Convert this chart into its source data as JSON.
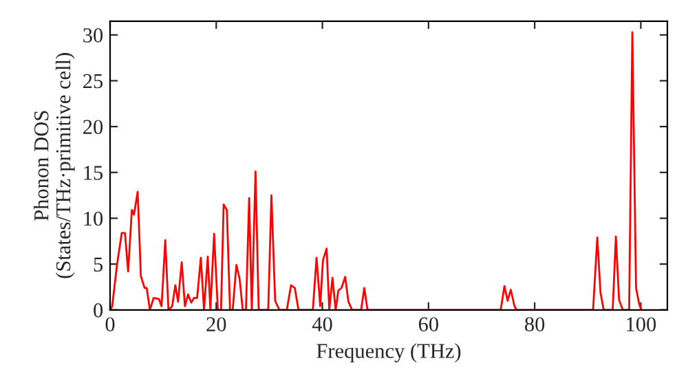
{
  "chart_data": {
    "type": "line",
    "xlabel": "Frequency (THz)",
    "ylabel": "Phonon DOS\n(States/THz·primitive cell)",
    "xlim": [
      0,
      105
    ],
    "ylim": [
      0,
      31.5
    ],
    "xticks": [
      0,
      20,
      40,
      60,
      80,
      100
    ],
    "yticks": [
      0,
      5,
      10,
      15,
      20,
      25,
      30
    ],
    "grid": false,
    "legend": false,
    "series": [
      {
        "color": "#ff0000",
        "x": [
          0,
          0.4,
          1.3,
          2.2,
          2.8,
          3.4,
          4.1,
          4.5,
          5.2,
          5.8,
          6.5,
          6.9,
          7.5,
          8.2,
          9.2,
          9.7,
          10.4,
          11.0,
          11.7,
          12.3,
          12.8,
          13.5,
          14.1,
          14.7,
          15.3,
          15.8,
          16.4,
          17.1,
          17.7,
          18.4,
          18.9,
          19.6,
          20.3,
          20.9,
          21.4,
          22.0,
          22.6,
          23.1,
          23.8,
          24.4,
          25.0,
          25.6,
          26.2,
          26.7,
          27.4,
          28.0,
          29.8,
          30.4,
          31.1,
          31.9,
          33.3,
          34.1,
          34.8,
          35.5,
          38.2,
          38.9,
          39.6,
          40.1,
          40.8,
          41.3,
          41.9,
          42.5,
          43.0,
          43.6,
          44.3,
          44.9,
          45.6,
          47.3,
          47.9,
          48.5,
          73.6,
          74.3,
          74.9,
          75.5,
          76.2,
          76.6,
          91.0,
          91.8,
          92.4,
          93.0,
          94.7,
          95.3,
          95.9,
          96.6,
          97.8,
          98.4,
          99.1,
          99.7,
          100.1
        ],
        "values": [
          0,
          0.4,
          4.9,
          8.4,
          8.4,
          4.2,
          10.9,
          10.4,
          12.9,
          3.7,
          2.4,
          2.4,
          0,
          1.3,
          1.2,
          0.4,
          7.6,
          0,
          0.4,
          2.7,
          0.9,
          5.2,
          0.4,
          1.7,
          0.8,
          1.3,
          1.3,
          5.7,
          0,
          5.8,
          0,
          8.3,
          0,
          0,
          11.5,
          10.9,
          0,
          0,
          4.9,
          3.4,
          0,
          0,
          12.2,
          0,
          15.1,
          0,
          0,
          12.5,
          1.0,
          0,
          0,
          2.7,
          2.4,
          0,
          0,
          5.7,
          0.4,
          5.4,
          6.7,
          0,
          3.5,
          0,
          2.1,
          2.4,
          3.6,
          0.9,
          0,
          0,
          2.4,
          0,
          0,
          2.6,
          1.0,
          2.2,
          0.4,
          0,
          0,
          7.9,
          1.9,
          0,
          0,
          8.0,
          1.1,
          0,
          0,
          30.3,
          2.4,
          0.6,
          0
        ]
      }
    ]
  }
}
